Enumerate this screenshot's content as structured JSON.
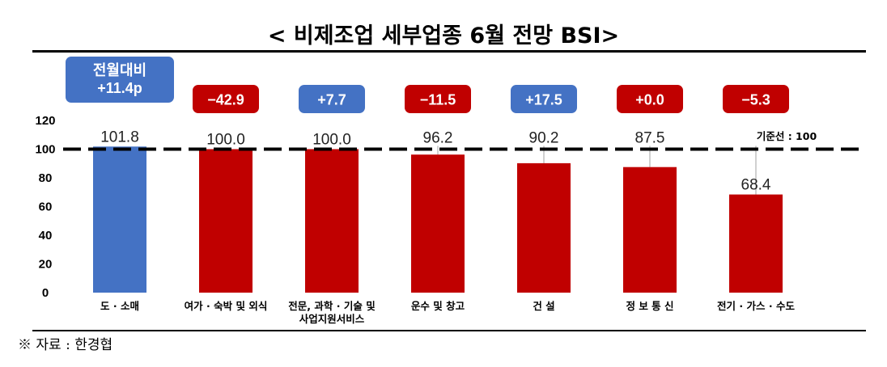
{
  "title": "< 비제조업 세부업종 6월 전망 BSI>",
  "source": "※ 자료 : 한경협",
  "reference_label": "기준선 : 100",
  "colors": {
    "blue": "#4472C4",
    "red": "#C00000",
    "badge_red": "#C00000",
    "badge_blue": "#4472C4"
  },
  "chart_data": {
    "type": "bar",
    "categories": [
      "도 · 소매",
      "여가 · 숙박 및 외식",
      "전문, 과학 · 기술 및 사업지원서비스",
      "운수 및 창고",
      "건 설",
      "정 보 통 신",
      "전기 · 가스 · 수도"
    ],
    "category_lines": [
      [
        "도 · 소매"
      ],
      [
        "여가 · 숙박 및 외식"
      ],
      [
        "전문, 과학 · 기술 및",
        "사업지원서비스"
      ],
      [
        "운수 및 창고"
      ],
      [
        "건 설"
      ],
      [
        "정 보 통 신"
      ],
      [
        "전기 · 가스 · 수도"
      ]
    ],
    "values": [
      101.8,
      100.0,
      100.0,
      96.2,
      90.2,
      87.5,
      68.4
    ],
    "value_labels": [
      "101.8",
      "100.0",
      "100.0",
      "96.2",
      "90.2",
      "87.5",
      "68.4"
    ],
    "bar_colors": [
      "blue",
      "red",
      "red",
      "red",
      "red",
      "red",
      "red"
    ],
    "changes": [
      {
        "lines": [
          "전월대비",
          "+11.4p"
        ],
        "color": "blue"
      },
      {
        "lines": [
          "−42.9"
        ],
        "color": "red"
      },
      {
        "lines": [
          "+7.7"
        ],
        "color": "blue"
      },
      {
        "lines": [
          "−11.5"
        ],
        "color": "red"
      },
      {
        "lines": [
          "+17.5"
        ],
        "color": "blue"
      },
      {
        "lines": [
          "+0.0"
        ],
        "color": "red"
      },
      {
        "lines": [
          "−5.3"
        ],
        "color": "red"
      }
    ],
    "ylim": [
      0,
      120
    ],
    "yticks": [
      0,
      20,
      40,
      60,
      80,
      100,
      120
    ],
    "reference_line": 100,
    "grid": false
  }
}
